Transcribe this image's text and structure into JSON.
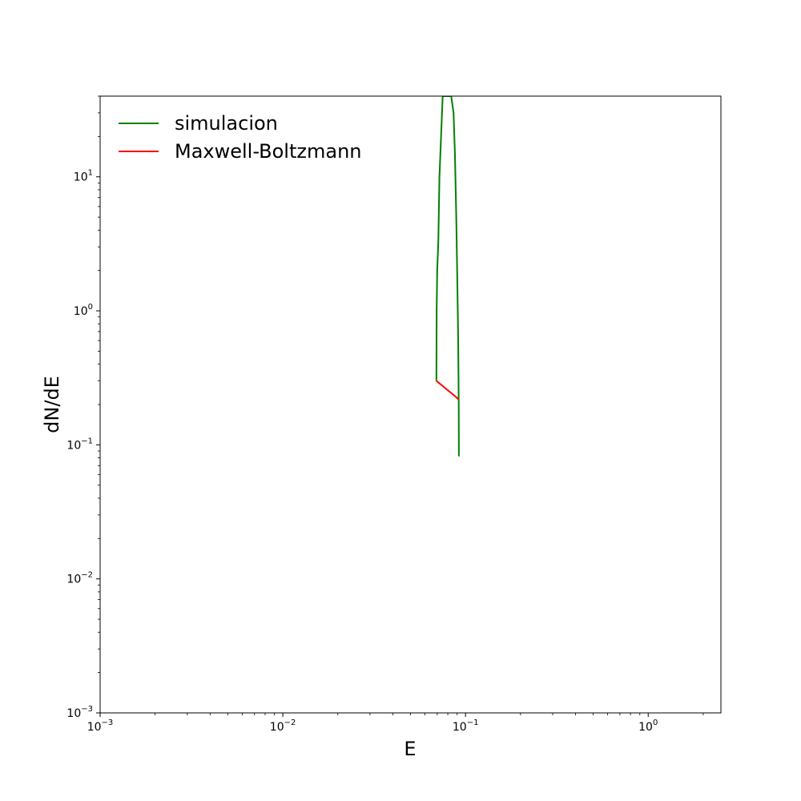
{
  "chart_data": {
    "type": "line",
    "title": "",
    "xlabel": "E",
    "ylabel": "dN/dE",
    "xscale": "log",
    "yscale": "log",
    "xlim": [
      0.001,
      2.5
    ],
    "ylim": [
      0.001,
      40
    ],
    "grid": false,
    "legend": "upper-left",
    "x_ticks": [
      {
        "value": 0.001,
        "base": "10",
        "exp": "−3"
      },
      {
        "value": 0.01,
        "base": "10",
        "exp": "−2"
      },
      {
        "value": 0.1,
        "base": "10",
        "exp": "−1"
      },
      {
        "value": 1,
        "base": "10",
        "exp": "0"
      }
    ],
    "y_ticks": [
      {
        "value": 0.001,
        "base": "10",
        "exp": "−3"
      },
      {
        "value": 0.01,
        "base": "10",
        "exp": "−2"
      },
      {
        "value": 0.1,
        "base": "10",
        "exp": "−1"
      },
      {
        "value": 1,
        "base": "10",
        "exp": "0"
      },
      {
        "value": 10,
        "base": "10",
        "exp": "1"
      }
    ],
    "series": [
      {
        "name": "simulacion",
        "color": "#008000",
        "x": [
          0.0693,
          0.0695,
          0.07,
          0.071,
          0.072,
          0.0735,
          0.075,
          0.0785,
          0.0785,
          0.082,
          0.0835,
          0.086,
          0.0875,
          0.089,
          0.09,
          0.0912,
          0.0918,
          0.092
        ],
        "y": [
          0.3,
          1.0,
          2.0,
          3.3,
          10.0,
          20.0,
          40.0,
          40.0,
          40.0,
          40.0,
          40.0,
          30.0,
          15.0,
          5.0,
          2.0,
          0.6,
          0.2,
          0.082
        ]
      },
      {
        "name": "Maxwell-Boltzmann",
        "color": "#ff0000",
        "x": [
          0.0693,
          0.075,
          0.081,
          0.087,
          0.0918
        ],
        "y": [
          0.3,
          0.275,
          0.252,
          0.233,
          0.218
        ]
      }
    ]
  }
}
